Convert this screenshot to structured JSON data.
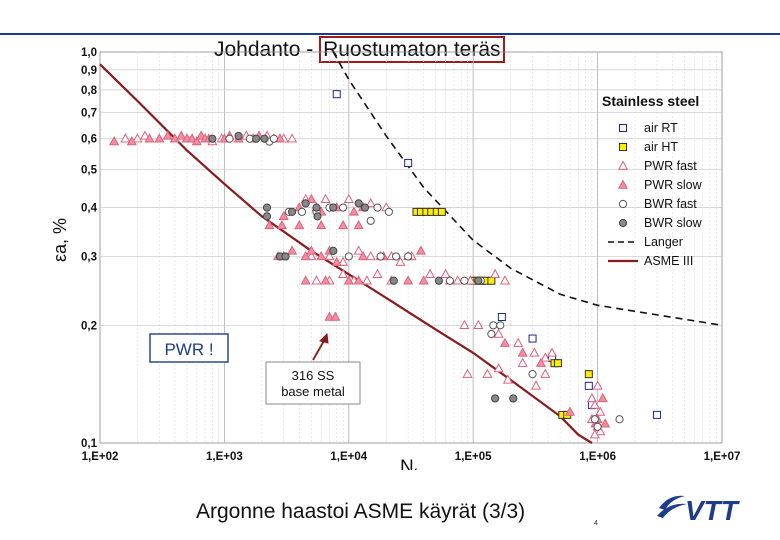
{
  "header": {
    "title_prefix": "Johdanto - ",
    "title_boxed": "Ruostumaton teräs"
  },
  "footer": {
    "title": "Argonne haastoi ASME käyrät (3/3)",
    "page_number": "4",
    "logo_text": "VTT"
  },
  "colors": {
    "accent_blue": "#1e3c8c",
    "pwr_red": "#e0607a",
    "pwr_fill": "#f08fa3",
    "air_ht_yellow": "#ffee00",
    "asme_line": "#8b1a1a",
    "bwr_slow_gray": "#888888",
    "air_rt_blue": "#1a2a8a"
  },
  "chart_data": {
    "type": "scatter",
    "title": "Stainless steel",
    "xlabel": "Nf",
    "ylabel": "εa, %",
    "x_scale": "log",
    "y_scale": "log",
    "xlim": [
      100,
      10000000
    ],
    "ylim": [
      0.1,
      1.0
    ],
    "grid": true,
    "legend_position": "right",
    "x_ticks": [
      {
        "value": 100,
        "label": "1,E+02"
      },
      {
        "value": 1000,
        "label": "1,E+03"
      },
      {
        "value": 10000,
        "label": "1,E+04"
      },
      {
        "value": 100000,
        "label": "1,E+05"
      },
      {
        "value": 1000000,
        "label": "1,E+06"
      },
      {
        "value": 10000000,
        "label": "1,E+07"
      }
    ],
    "y_ticks": [
      {
        "value": 1.0,
        "label": "1,0"
      },
      {
        "value": 0.9,
        "label": "0,9"
      },
      {
        "value": 0.8,
        "label": "0,8"
      },
      {
        "value": 0.7,
        "label": "0,7"
      },
      {
        "value": 0.6,
        "label": "0,6"
      },
      {
        "value": 0.5,
        "label": "0,5"
      },
      {
        "value": 0.4,
        "label": "0,4"
      },
      {
        "value": 0.3,
        "label": "0,3"
      },
      {
        "value": 0.2,
        "label": "0,2"
      },
      {
        "value": 0.1,
        "label": "0,1"
      }
    ],
    "annotations": [
      {
        "text": "PWR !"
      },
      {
        "text": "316 SS"
      },
      {
        "text": "base metal"
      }
    ],
    "series": [
      {
        "name": "air RT",
        "marker": "square",
        "fill": "#ffffff",
        "stroke": "#1a2a8a",
        "points": [
          [
            8000,
            0.78
          ],
          [
            30000,
            0.52
          ],
          [
            170000,
            0.21
          ],
          [
            300000,
            0.185
          ],
          [
            430000,
            0.165
          ],
          [
            850000,
            0.14
          ],
          [
            900000,
            0.125
          ],
          [
            3000000,
            0.118
          ]
        ]
      },
      {
        "name": "air HT",
        "marker": "square",
        "fill": "#ffee00",
        "stroke": "#333333",
        "points": [
          [
            35000,
            0.39
          ],
          [
            38000,
            0.39
          ],
          [
            42000,
            0.39
          ],
          [
            46000,
            0.39
          ],
          [
            51000,
            0.39
          ],
          [
            56000,
            0.39
          ],
          [
            100000,
            0.26
          ],
          [
            108000,
            0.26
          ],
          [
            116000,
            0.26
          ],
          [
            125000,
            0.26
          ],
          [
            140000,
            0.26
          ],
          [
            450000,
            0.16
          ],
          [
            480000,
            0.16
          ],
          [
            520000,
            0.118
          ],
          [
            570000,
            0.118
          ],
          [
            850000,
            0.15
          ]
        ]
      },
      {
        "name": "PWR fast",
        "marker": "triangle",
        "fill": "#ffffff",
        "stroke": "#e0607a",
        "points": [
          [
            160,
            0.6
          ],
          [
            200,
            0.6
          ],
          [
            230,
            0.61
          ],
          [
            800,
            0.59
          ],
          [
            950,
            0.6
          ],
          [
            1500,
            0.61
          ],
          [
            2200,
            0.61
          ],
          [
            3000,
            0.6
          ],
          [
            3500,
            0.6
          ],
          [
            4500,
            0.42
          ],
          [
            5500,
            0.4
          ],
          [
            6500,
            0.42
          ],
          [
            10000,
            0.42
          ],
          [
            15000,
            0.41
          ],
          [
            20000,
            0.4
          ],
          [
            5000,
            0.3
          ],
          [
            7000,
            0.3
          ],
          [
            9000,
            0.29
          ],
          [
            12000,
            0.31
          ],
          [
            15000,
            0.3
          ],
          [
            18000,
            0.3
          ],
          [
            22000,
            0.3
          ],
          [
            26000,
            0.29
          ],
          [
            32000,
            0.3
          ],
          [
            5500,
            0.26
          ],
          [
            7000,
            0.26
          ],
          [
            9000,
            0.27
          ],
          [
            11000,
            0.26
          ],
          [
            14000,
            0.26
          ],
          [
            17000,
            0.27
          ],
          [
            22000,
            0.26
          ],
          [
            45000,
            0.27
          ],
          [
            60000,
            0.27
          ],
          [
            75000,
            0.26
          ],
          [
            95000,
            0.26
          ],
          [
            150000,
            0.27
          ],
          [
            180000,
            0.26
          ],
          [
            85000,
            0.2
          ],
          [
            110000,
            0.2
          ],
          [
            160000,
            0.19
          ],
          [
            230000,
            0.18
          ],
          [
            310000,
            0.17
          ],
          [
            380000,
            0.165
          ],
          [
            90000,
            0.15
          ],
          [
            130000,
            0.15
          ],
          [
            160000,
            0.155
          ],
          [
            190000,
            0.145
          ],
          [
            250000,
            0.16
          ],
          [
            320000,
            0.14
          ],
          [
            380000,
            0.15
          ],
          [
            430000,
            0.17
          ],
          [
            900000,
            0.13
          ],
          [
            950000,
            0.125
          ],
          [
            1000000,
            0.14
          ],
          [
            1050000,
            0.12
          ],
          [
            900000,
            0.115
          ],
          [
            1000000,
            0.11
          ],
          [
            1050000,
            0.107
          ],
          [
            950000,
            0.105
          ]
        ]
      },
      {
        "name": "PWR slow",
        "marker": "triangle",
        "fill": "#f08fa3",
        "stroke": "#e0607a",
        "points": [
          [
            130,
            0.59
          ],
          [
            180,
            0.59
          ],
          [
            250,
            0.6
          ],
          [
            300,
            0.6
          ],
          [
            350,
            0.61
          ],
          [
            400,
            0.6
          ],
          [
            450,
            0.61
          ],
          [
            500,
            0.6
          ],
          [
            550,
            0.6
          ],
          [
            600,
            0.59
          ],
          [
            650,
            0.61
          ],
          [
            700,
            0.6
          ],
          [
            750,
            0.6
          ],
          [
            1000,
            0.6
          ],
          [
            1100,
            0.61
          ],
          [
            1300,
            0.6
          ],
          [
            1700,
            0.6
          ],
          [
            1900,
            0.61
          ],
          [
            2500,
            0.6
          ],
          [
            2800,
            0.6
          ],
          [
            4000,
            0.4
          ],
          [
            5000,
            0.42
          ],
          [
            6000,
            0.39
          ],
          [
            8000,
            0.4
          ],
          [
            11000,
            0.39
          ],
          [
            13000,
            0.4
          ],
          [
            2700,
            0.3
          ],
          [
            3000,
            0.3
          ],
          [
            3500,
            0.31
          ],
          [
            4500,
            0.3
          ],
          [
            5000,
            0.31
          ],
          [
            6000,
            0.3
          ],
          [
            7000,
            0.31
          ],
          [
            8000,
            0.29
          ],
          [
            13000,
            0.3
          ],
          [
            19000,
            0.3
          ],
          [
            30000,
            0.3
          ],
          [
            38000,
            0.31
          ],
          [
            4500,
            0.26
          ],
          [
            6500,
            0.26
          ],
          [
            10000,
            0.26
          ],
          [
            12000,
            0.26
          ],
          [
            30000,
            0.26
          ],
          [
            40000,
            0.26
          ],
          [
            65000,
            0.26
          ],
          [
            7000,
            0.21
          ],
          [
            7800,
            0.21
          ],
          [
            3000,
            0.38
          ],
          [
            2300,
            0.36
          ],
          [
            2900,
            0.36
          ],
          [
            4000,
            0.36
          ],
          [
            6000,
            0.36
          ],
          [
            9000,
            0.36
          ],
          [
            12000,
            0.36
          ],
          [
            180000,
            0.18
          ],
          [
            250000,
            0.17
          ],
          [
            350000,
            0.16
          ],
          [
            600000,
            0.12
          ],
          [
            1100000,
            0.13
          ],
          [
            1000000,
            0.115
          ],
          [
            960000,
            0.112
          ],
          [
            1150000,
            0.112
          ]
        ]
      },
      {
        "name": "BWR fast",
        "marker": "circle",
        "fill": "#ffffff",
        "stroke": "#555555",
        "points": [
          [
            1100,
            0.6
          ],
          [
            1600,
            0.6
          ],
          [
            2300,
            0.59
          ],
          [
            2500,
            0.6
          ],
          [
            3300,
            0.39
          ],
          [
            4200,
            0.39
          ],
          [
            5500,
            0.39
          ],
          [
            7000,
            0.4
          ],
          [
            9000,
            0.4
          ],
          [
            15000,
            0.37
          ],
          [
            17000,
            0.4
          ],
          [
            21000,
            0.39
          ],
          [
            10000,
            0.3
          ],
          [
            18000,
            0.3
          ],
          [
            24000,
            0.3
          ],
          [
            30000,
            0.3
          ],
          [
            65000,
            0.26
          ],
          [
            85000,
            0.26
          ],
          [
            115000,
            0.26
          ],
          [
            145000,
            0.2
          ],
          [
            165000,
            0.2
          ],
          [
            140000,
            0.19
          ],
          [
            300000,
            0.15
          ],
          [
            950000,
            0.115
          ],
          [
            1000000,
            0.11
          ],
          [
            1500000,
            0.115
          ]
        ]
      },
      {
        "name": "BWR slow",
        "marker": "circle",
        "fill": "#888888",
        "stroke": "#444444",
        "points": [
          [
            800,
            0.6
          ],
          [
            1300,
            0.61
          ],
          [
            1800,
            0.6
          ],
          [
            2100,
            0.6
          ],
          [
            2200,
            0.4
          ],
          [
            3500,
            0.39
          ],
          [
            4500,
            0.41
          ],
          [
            5500,
            0.4
          ],
          [
            7500,
            0.4
          ],
          [
            12000,
            0.41
          ],
          [
            13500,
            0.4
          ],
          [
            2800,
            0.3
          ],
          [
            3100,
            0.3
          ],
          [
            7500,
            0.31
          ],
          [
            23000,
            0.26
          ],
          [
            53000,
            0.26
          ],
          [
            110000,
            0.26
          ],
          [
            150000,
            0.13
          ],
          [
            210000,
            0.13
          ],
          [
            2200,
            0.38
          ],
          [
            5600,
            0.38
          ]
        ]
      }
    ],
    "lines": [
      {
        "name": "Langer",
        "style": "dashed",
        "points": [
          [
            7500,
            1.0
          ],
          [
            10000,
            0.85
          ],
          [
            20000,
            0.61
          ],
          [
            40000,
            0.45
          ],
          [
            100000,
            0.33
          ],
          [
            200000,
            0.28
          ],
          [
            500000,
            0.24
          ],
          [
            1000000,
            0.225
          ],
          [
            10000000,
            0.2
          ]
        ]
      },
      {
        "name": "ASME III",
        "style": "solid",
        "points": [
          [
            100,
            0.93
          ],
          [
            200,
            0.75
          ],
          [
            500,
            0.56
          ],
          [
            1000,
            0.46
          ],
          [
            2000,
            0.38
          ],
          [
            5000,
            0.31
          ],
          [
            10000,
            0.27
          ],
          [
            20000,
            0.235
          ],
          [
            50000,
            0.195
          ],
          [
            100000,
            0.17
          ],
          [
            200000,
            0.145
          ],
          [
            500000,
            0.117
          ],
          [
            700000,
            0.105
          ],
          [
            900000,
            0.1
          ]
        ]
      }
    ]
  }
}
